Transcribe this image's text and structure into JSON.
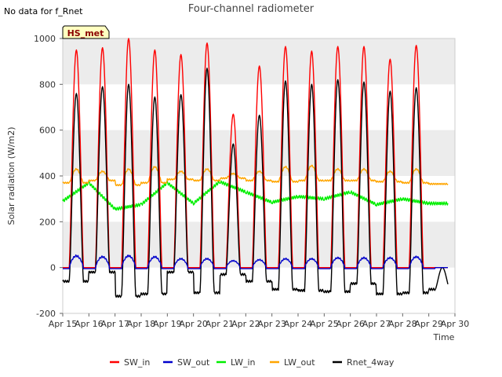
{
  "header": {
    "no_data_text": "No data for f_Rnet",
    "site_badge": "HS_met"
  },
  "chart_data": {
    "type": "line",
    "title": "Four-channel radiometer",
    "xlabel": "Time",
    "ylabel": "Solar radiation (W/m2)",
    "xlim": [
      "2024-04-15",
      "2024-04-30"
    ],
    "ylim": [
      -200,
      1000
    ],
    "yticks": [
      -200,
      0,
      200,
      400,
      600,
      800,
      1000
    ],
    "xtick_labels": [
      "Apr 15",
      "Apr 16",
      "Apr 17",
      "Apr 18",
      "Apr 19",
      "Apr 20",
      "Apr 21",
      "Apr 22",
      "Apr 23",
      "Apr 24",
      "Apr 25",
      "Apr 26",
      "Apr 27",
      "Apr 28",
      "Apr 29",
      "Apr 30"
    ],
    "grid": "horizontal bands",
    "legend_position": "bottom",
    "colors": {
      "SW_in": "#ff0000",
      "SW_out": "#0000cc",
      "LW_in": "#00ee00",
      "LW_out": "#ffa500",
      "Rnet_4way": "#000000",
      "band": "#ececec"
    },
    "series": [
      {
        "name": "SW_in",
        "x": [
          "Apr 15",
          "Apr 16",
          "Apr 17",
          "Apr 18",
          "Apr 19",
          "Apr 20",
          "Apr 21",
          "Apr 22",
          "Apr 23",
          "Apr 24",
          "Apr 25",
          "Apr 26",
          "Apr 27",
          "Apr 28",
          "Apr 29"
        ],
        "daily_peak": [
          950,
          960,
          1000,
          950,
          930,
          980,
          670,
          880,
          965,
          945,
          965,
          965,
          910,
          970,
          0
        ],
        "night_value": 0
      },
      {
        "name": "SW_out",
        "x": [
          "Apr 15",
          "Apr 16",
          "Apr 17",
          "Apr 18",
          "Apr 19",
          "Apr 20",
          "Apr 21",
          "Apr 22",
          "Apr 23",
          "Apr 24",
          "Apr 25",
          "Apr 26",
          "Apr 27",
          "Apr 28",
          "Apr 29"
        ],
        "daily_peak": [
          60,
          55,
          60,
          55,
          45,
          45,
          35,
          40,
          45,
          45,
          50,
          50,
          50,
          55,
          0
        ],
        "night_value": -5
      },
      {
        "name": "LW_in",
        "x": [
          "Apr 15",
          "Apr 16",
          "Apr 17",
          "Apr 18",
          "Apr 19",
          "Apr 20",
          "Apr 21",
          "Apr 22",
          "Apr 23",
          "Apr 24",
          "Apr 25",
          "Apr 26",
          "Apr 27",
          "Apr 28",
          "Apr 29"
        ],
        "daily_level": [
          290,
          370,
          255,
          275,
          370,
          280,
          375,
          330,
          285,
          310,
          300,
          330,
          275,
          300,
          280
        ]
      },
      {
        "name": "LW_out",
        "x": [
          "Apr 15",
          "Apr 16",
          "Apr 17",
          "Apr 18",
          "Apr 19",
          "Apr 20",
          "Apr 21",
          "Apr 22",
          "Apr 23",
          "Apr 24",
          "Apr 25",
          "Apr 26",
          "Apr 27",
          "Apr 28",
          "Apr 29"
        ],
        "night_level": [
          370,
          380,
          360,
          370,
          385,
          380,
          390,
          380,
          375,
          380,
          380,
          380,
          375,
          370,
          365
        ],
        "day_peak": [
          430,
          420,
          430,
          440,
          420,
          430,
          410,
          420,
          440,
          445,
          430,
          430,
          420,
          430,
          0
        ]
      },
      {
        "name": "Rnet_4way",
        "x": [
          "Apr 15",
          "Apr 16",
          "Apr 17",
          "Apr 18",
          "Apr 19",
          "Apr 20",
          "Apr 21",
          "Apr 22",
          "Apr 23",
          "Apr 24",
          "Apr 25",
          "Apr 26",
          "Apr 27",
          "Apr 28",
          "Apr 29"
        ],
        "daily_peak": [
          760,
          790,
          800,
          745,
          755,
          870,
          540,
          665,
          815,
          800,
          820,
          810,
          770,
          785,
          0
        ],
        "night_value": [
          -60,
          -20,
          -125,
          -115,
          -20,
          -110,
          -30,
          -60,
          -95,
          -100,
          -105,
          -70,
          -115,
          -110,
          -95
        ]
      }
    ]
  }
}
